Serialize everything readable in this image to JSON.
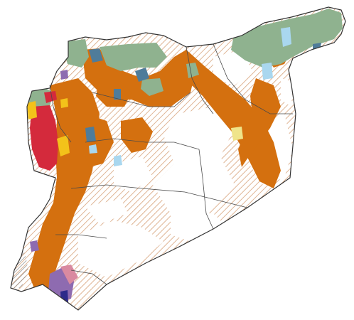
{
  "map": {
    "colors": {
      "background": "#ffffff",
      "border": "#4a4a4a",
      "hatch": "#d7a27a",
      "orange": "#d4700f",
      "sage": "#8fb28f",
      "steel_blue": "#4f7c9a",
      "light_blue": "#a9d7ef",
      "red": "#d42a3c",
      "yellow": "#f3c21a",
      "pale_yellow": "#efe48a",
      "purple": "#8e6bb0",
      "dark_blue": "#2d2a8a",
      "pink": "#d98aa0",
      "gray_hatch": "#7a7a7a"
    },
    "legend_shown": false
  }
}
